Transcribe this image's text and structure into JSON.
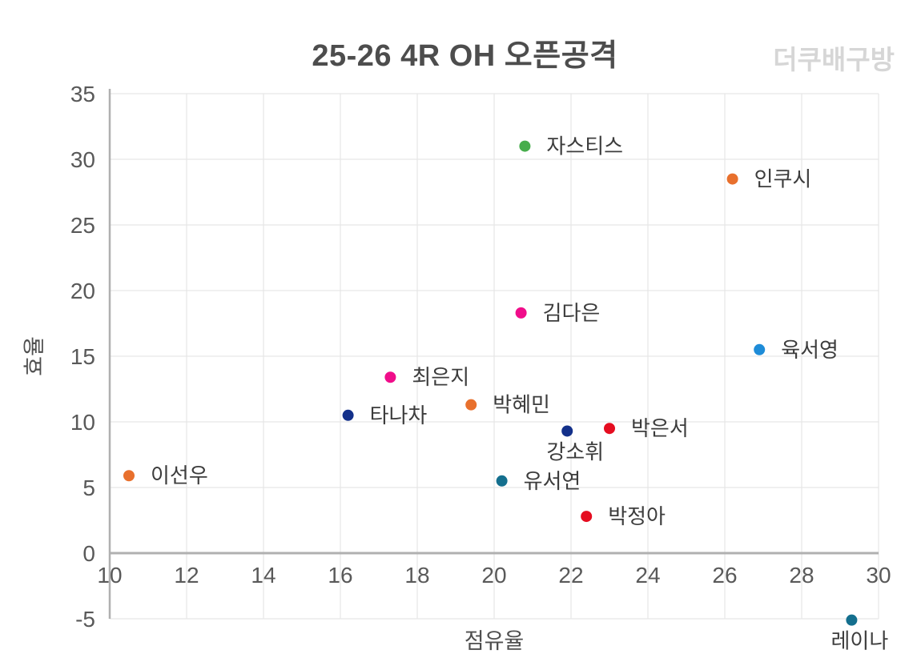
{
  "header": {
    "title": "25-26 4R OH 오픈공격",
    "watermark": "더쿠배구방"
  },
  "style": {
    "background": "#ffffff",
    "title_color": "#4d4d4d",
    "watermark_color": "#d6d6d6",
    "grid_color": "#e7e7e7",
    "spine_color": "#b0b0b0",
    "tick_label_color": "#595959",
    "point_label_color": "#3c3c3c"
  },
  "chart_data": {
    "type": "scatter",
    "title": "25-26 4R OH 오픈공격",
    "xlabel": "점유율",
    "ylabel": "효율",
    "xlim": [
      10,
      30
    ],
    "ylim": [
      -5,
      35
    ],
    "xticks": [
      10,
      12,
      14,
      16,
      18,
      20,
      22,
      24,
      26,
      28,
      30
    ],
    "yticks": [
      -5,
      0,
      5,
      10,
      15,
      20,
      25,
      30,
      35
    ],
    "grid": true,
    "legend": "none",
    "marker_radius": 7,
    "points": [
      {
        "label": "자스티스",
        "x": 20.8,
        "y": 31.0,
        "color": "#47ad4c",
        "label_pos": "right"
      },
      {
        "label": "인쿠시",
        "x": 26.2,
        "y": 28.5,
        "color": "#e8702d",
        "label_pos": "right"
      },
      {
        "label": "김다은",
        "x": 20.7,
        "y": 18.3,
        "color": "#f00d8a",
        "label_pos": "right"
      },
      {
        "label": "육서영",
        "x": 26.9,
        "y": 15.5,
        "color": "#1e8cd8",
        "label_pos": "right"
      },
      {
        "label": "최은지",
        "x": 17.3,
        "y": 13.4,
        "color": "#f00d8a",
        "label_pos": "right"
      },
      {
        "label": "박혜민",
        "x": 19.4,
        "y": 11.3,
        "color": "#e8702d",
        "label_pos": "right"
      },
      {
        "label": "타나차",
        "x": 16.2,
        "y": 10.5,
        "color": "#13308a",
        "label_pos": "right"
      },
      {
        "label": "박은서",
        "x": 23.0,
        "y": 9.5,
        "color": "#e50d20",
        "label_pos": "right"
      },
      {
        "label": "강소휘",
        "x": 21.9,
        "y": 9.3,
        "color": "#13308a",
        "label_pos": "below"
      },
      {
        "label": "이선우",
        "x": 10.5,
        "y": 5.9,
        "color": "#e8702d",
        "label_pos": "right"
      },
      {
        "label": "유서연",
        "x": 20.2,
        "y": 5.5,
        "color": "#146f8e",
        "label_pos": "right"
      },
      {
        "label": "박정아",
        "x": 22.4,
        "y": 2.8,
        "color": "#e50d20",
        "label_pos": "right"
      },
      {
        "label": "레이나",
        "x": 29.3,
        "y": -5.1,
        "color": "#146f8e",
        "label_pos": "below"
      }
    ]
  }
}
